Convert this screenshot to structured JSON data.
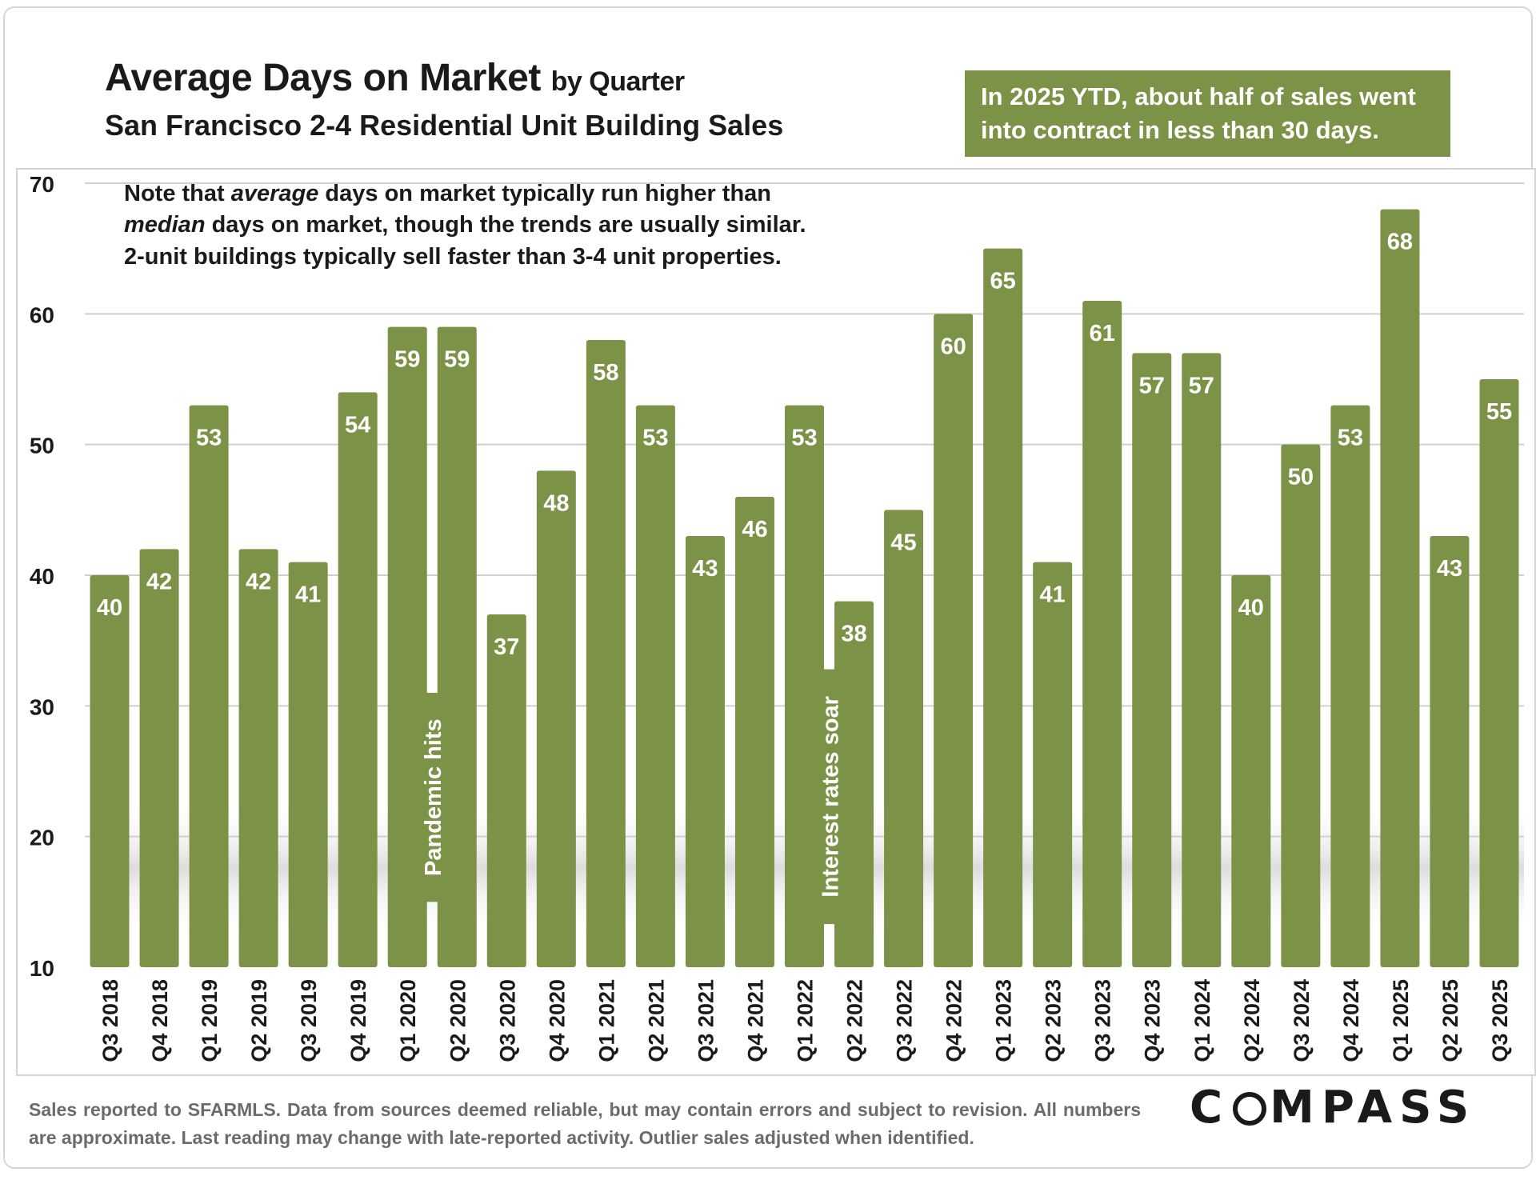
{
  "title": {
    "main": "Average Days on Market",
    "suffix": "by Quarter",
    "subtitle": "San Francisco 2-4 Residential Unit Building Sales"
  },
  "callout": "In 2025 YTD, about half of sales went into contract in less than 30 days.",
  "note": {
    "line1_a": "Note that ",
    "line1_em": "average",
    "line1_b": " days on market typically run higher than",
    "line2_em": "median",
    "line2_b": " days on market, though the trends are usually similar.",
    "line3": "2-unit buildings typically sell faster than 3-4 unit properties."
  },
  "footer": "Sales reported to SFARMLS. Data from sources deemed reliable, but may contain errors and subject to revision. All numbers are approximate. Last reading may change with late-reported activity. Outlier sales adjusted when identified.",
  "logo": {
    "left": "C",
    "right": "MPASS"
  },
  "colors": {
    "bar": "#7c9347",
    "label": "#ffffff",
    "grid": "#d0d0d0",
    "text": "#1a1a1a"
  },
  "chart_data": {
    "type": "bar",
    "title": "Average Days on Market by Quarter",
    "subtitle": "San Francisco 2-4 Residential Unit Building Sales",
    "xlabel": "",
    "ylabel": "",
    "ylim": [
      10,
      70
    ],
    "yticks": [
      10,
      20,
      30,
      40,
      50,
      60,
      70
    ],
    "grid": true,
    "categories": [
      "Q3 2018",
      "Q4 2018",
      "Q1 2019",
      "Q2 2019",
      "Q3 2019",
      "Q4 2019",
      "Q1 2020",
      "Q2 2020",
      "Q3 2020",
      "Q4 2020",
      "Q1 2021",
      "Q2 2021",
      "Q3 2021",
      "Q4 2021",
      "Q1 2022",
      "Q2 2022",
      "Q3 2022",
      "Q4 2022",
      "Q1 2023",
      "Q2 2023",
      "Q3 2023",
      "Q4 2023",
      "Q1 2024",
      "Q2 2024",
      "Q3 2024",
      "Q4 2024",
      "Q1 2025",
      "Q2 2025",
      "Q3 2025"
    ],
    "values": [
      40,
      42,
      53,
      42,
      41,
      54,
      59,
      59,
      37,
      48,
      58,
      53,
      43,
      46,
      53,
      38,
      45,
      60,
      65,
      41,
      61,
      57,
      57,
      40,
      50,
      53,
      68,
      43,
      55
    ],
    "annotations": [
      {
        "text": "Pandemic hits",
        "category_index": 6.5,
        "y_from": 15,
        "y_to": 31
      },
      {
        "text": "Interest rates soar",
        "category_index": 14.5,
        "y_from": 13.3,
        "y_to": 32.8
      }
    ]
  }
}
